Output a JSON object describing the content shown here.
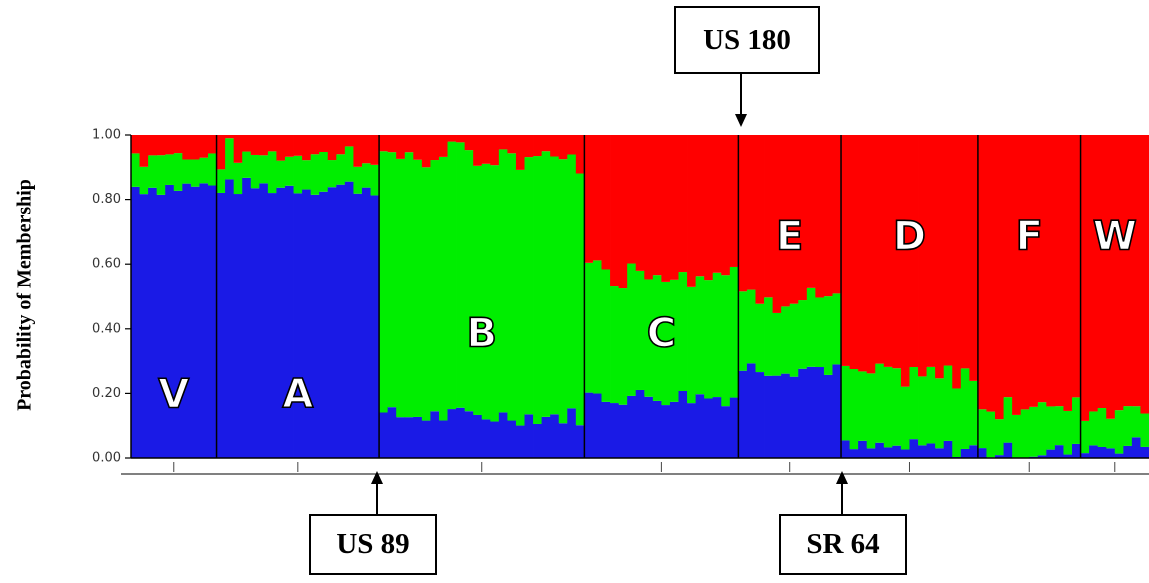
{
  "chart_data": {
    "type": "bar",
    "stacked": true,
    "ylabel": "Probability of Membership",
    "ylim": [
      0,
      1
    ],
    "y_ticks": [
      "0.00",
      "0.20",
      "0.40",
      "0.60",
      "0.80",
      "1.00"
    ],
    "series": [
      {
        "color": "#1a1ae6"
      },
      {
        "color": "#00ee00"
      },
      {
        "color": "#ff0000"
      }
    ],
    "populations": [
      {
        "label": "V",
        "n": 10,
        "blue": 0.84,
        "green": 0.1,
        "red": 0.06
      },
      {
        "label": "A",
        "n": 19,
        "blue": 0.84,
        "green": 0.1,
        "red": 0.06
      },
      {
        "label": "B",
        "n": 24,
        "blue": 0.13,
        "green": 0.8,
        "red": 0.07
      },
      {
        "label": "C",
        "n": 18,
        "blue": 0.19,
        "green": 0.39,
        "red": 0.42
      },
      {
        "label": "E",
        "n": 12,
        "blue": 0.28,
        "green": 0.22,
        "red": 0.5
      },
      {
        "label": "D",
        "n": 16,
        "blue": 0.03,
        "green": 0.22,
        "red": 0.75
      },
      {
        "label": "F",
        "n": 12,
        "blue": 0.02,
        "green": 0.14,
        "red": 0.84
      },
      {
        "label": "W",
        "n": 8,
        "blue": 0.04,
        "green": 0.12,
        "red": 0.84
      }
    ]
  },
  "callouts": {
    "us180": "US 180",
    "us89": "US 89",
    "sr64": "SR 64"
  }
}
